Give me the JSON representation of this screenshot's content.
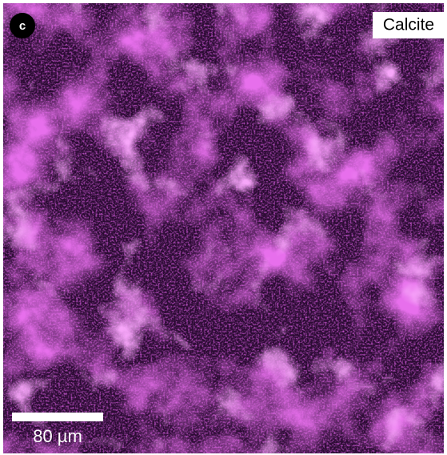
{
  "panel_label": "c",
  "label": "Calcite",
  "scale_bar": {
    "label": "80 µm"
  }
}
